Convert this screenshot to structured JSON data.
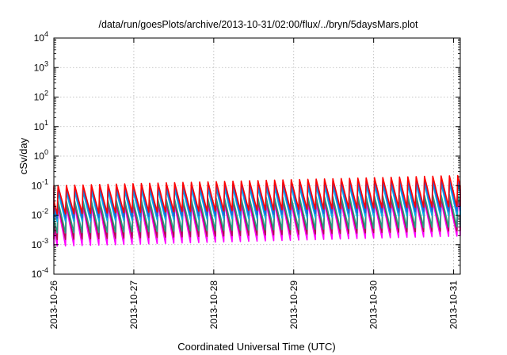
{
  "chart_data": {
    "type": "line",
    "title": "/data/run/goesPlots/archive/2013-10-31/02:00/flux/../bryn/5daysMars.plot",
    "xlabel": "Coordinated Universal Time (UTC)",
    "ylabel": "cSv/day",
    "y_scale": "log",
    "ylim_exponents": [
      -4,
      4
    ],
    "y_ticks": [
      {
        "base": "10",
        "exp": "4"
      },
      {
        "base": "10",
        "exp": "3"
      },
      {
        "base": "10",
        "exp": "2"
      },
      {
        "base": "10",
        "exp": "1"
      },
      {
        "base": "10",
        "exp": "0"
      },
      {
        "base": "10",
        "exp": "-1"
      },
      {
        "base": "10",
        "exp": "-2"
      },
      {
        "base": "10",
        "exp": "-3"
      },
      {
        "base": "10",
        "exp": "-4"
      }
    ],
    "x_ticks": [
      "2013-10-26",
      "2013-10-27",
      "2013-10-28",
      "2013-10-29",
      "2013-10-30",
      "2013-10-31"
    ],
    "xlim": [
      "2013-10-26 00:00",
      "2013-10-31 02:00"
    ],
    "grid": true,
    "legend": "none",
    "cycle_hours": 2.5,
    "series": [
      {
        "color": "#ff0000",
        "peak_start": 0.1,
        "peak_end": 0.22,
        "trough_start": 0.011,
        "trough_end": 0.02
      },
      {
        "color": "#2060e0",
        "peak_start": 0.085,
        "peak_end": 0.17,
        "trough_start": 0.008,
        "trough_end": 0.014
      },
      {
        "color": "#00b0e8",
        "peak_start": 0.06,
        "peak_end": 0.12,
        "trough_start": 0.006,
        "trough_end": 0.01
      },
      {
        "color": "#20a080",
        "peak_start": 0.03,
        "peak_end": 0.05,
        "trough_start": 0.0025,
        "trough_end": 0.004
      },
      {
        "color": "#b01050",
        "peak_start": 0.025,
        "peak_end": 0.04,
        "trough_start": 0.0015,
        "trough_end": 0.003
      },
      {
        "color": "#ff00ff",
        "peak_start": 0.02,
        "peak_end": 0.03,
        "trough_start": 0.0009,
        "trough_end": 0.002
      }
    ]
  }
}
